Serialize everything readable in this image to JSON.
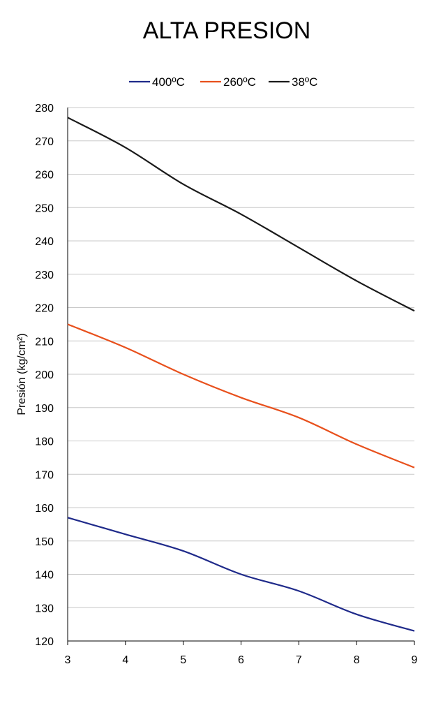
{
  "chart_data": {
    "type": "line",
    "title": "ALTA PRESION",
    "xlabel": "",
    "ylabel": "Presión (kg/cm²)",
    "x": [
      3,
      4,
      5,
      6,
      7,
      8,
      9
    ],
    "xlim": [
      3,
      9
    ],
    "ylim": [
      120,
      280
    ],
    "yticks": [
      120,
      130,
      140,
      150,
      160,
      170,
      180,
      190,
      200,
      210,
      220,
      230,
      240,
      250,
      260,
      270,
      280
    ],
    "grid": true,
    "legend_position": "top",
    "series": [
      {
        "name": "400ºC",
        "color": "#1f2a8a",
        "values": [
          157,
          152,
          147,
          140,
          135,
          128,
          123
        ]
      },
      {
        "name": "260ºC",
        "color": "#e8501c",
        "values": [
          215,
          208,
          200,
          193,
          187,
          179,
          172
        ]
      },
      {
        "name": "38ºC",
        "color": "#1a1a1a",
        "values": [
          277,
          268,
          257,
          248,
          238,
          228,
          219
        ]
      }
    ]
  }
}
